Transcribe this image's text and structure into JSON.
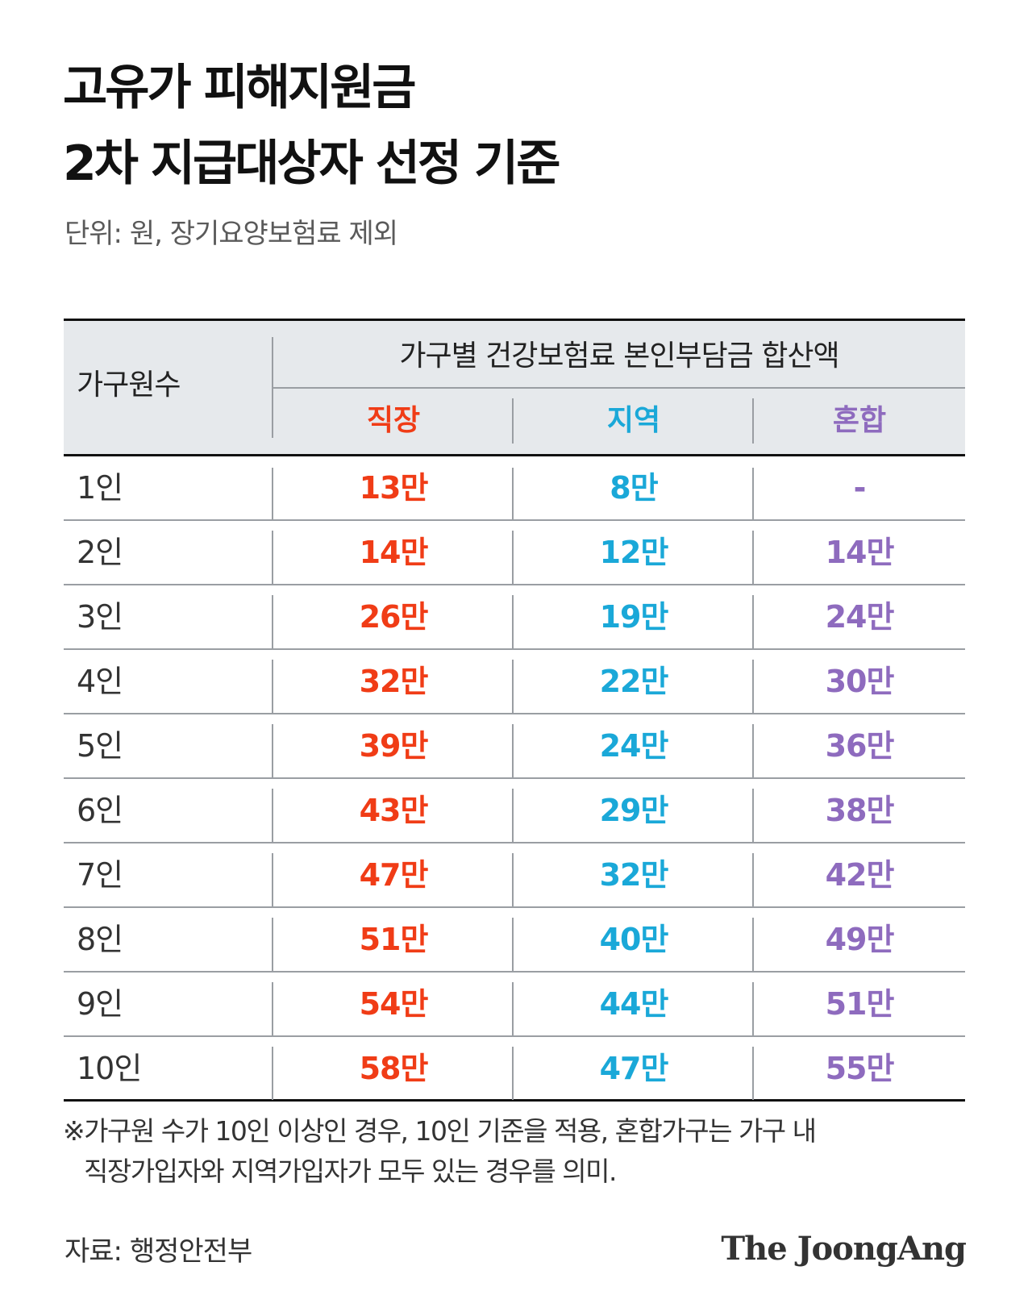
{
  "title": {
    "line1": "고유가 피해지원금",
    "line2": "2차 지급대상자 선정 기준"
  },
  "unit_note": "단위: 원, 장기요양보험료 제외",
  "table": {
    "header": {
      "household": "가구원수",
      "group": "가구별 건강보험료 본인부담금 합산액",
      "cols": [
        "직장",
        "지역",
        "혼합"
      ]
    },
    "col_colors": [
      "#f03c16",
      "#1aa8d8",
      "#8e6bbe"
    ],
    "rows": [
      {
        "household": "1인",
        "values": [
          "13만",
          "8만",
          "-"
        ]
      },
      {
        "household": "2인",
        "values": [
          "14만",
          "12만",
          "14만"
        ]
      },
      {
        "household": "3인",
        "values": [
          "26만",
          "19만",
          "24만"
        ]
      },
      {
        "household": "4인",
        "values": [
          "32만",
          "22만",
          "30만"
        ]
      },
      {
        "household": "5인",
        "values": [
          "39만",
          "24만",
          "36만"
        ]
      },
      {
        "household": "6인",
        "values": [
          "43만",
          "29만",
          "38만"
        ]
      },
      {
        "household": "7인",
        "values": [
          "47만",
          "32만",
          "42만"
        ]
      },
      {
        "household": "8인",
        "values": [
          "51만",
          "40만",
          "49만"
        ]
      },
      {
        "household": "9인",
        "values": [
          "54만",
          "44만",
          "51만"
        ]
      },
      {
        "household": "10인",
        "values": [
          "58만",
          "47만",
          "55만"
        ]
      }
    ]
  },
  "footnote": {
    "line1": "※가구원 수가 10인 이상인 경우, 10인 기준을 적용, 혼합가구는 가구 내",
    "line2": "직장가입자와 지역가입자가 모두 있는 경우를 의미."
  },
  "source": "자료: 행정안전부",
  "logo": "The JoongAng"
}
